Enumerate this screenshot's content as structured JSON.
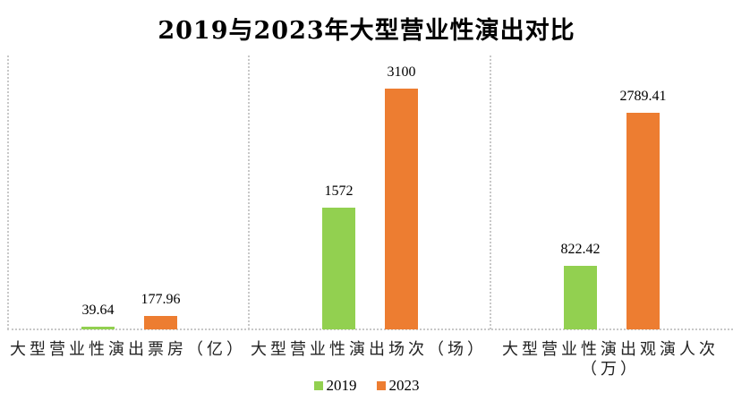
{
  "chart_data": {
    "type": "bar",
    "title": "2019与2023年大型营业性演出对比",
    "categories": [
      "大型营业性演出票房（亿）",
      "大型营业性演出场次（场）",
      "大型营业性演出观演人次（万）"
    ],
    "series": [
      {
        "name": "2019",
        "color": "#92d050",
        "values": [
          39.64,
          1572,
          822.42
        ],
        "labels": [
          "39.64",
          "1572",
          "822.42"
        ]
      },
      {
        "name": "2023",
        "color": "#ed7d31",
        "values": [
          177.96,
          3100,
          2789.41
        ],
        "labels": [
          "177.96",
          "3100",
          "2789.41"
        ]
      }
    ],
    "xlabel": "",
    "ylabel": "",
    "y_axis_visible": false,
    "grid": false,
    "legend_position": "bottom",
    "data_labels": true
  },
  "title": "2019与2023年大型营业性演出对比",
  "categories": {
    "c0": "大型营业性演出票房（亿）",
    "c1": "大型营业性演出场次（场）",
    "c2a": "大型营业性演出观演人次",
    "c2b": "（万）"
  },
  "labels": {
    "s0": [
      "39.64",
      "1572",
      "822.42"
    ],
    "s1": [
      "177.96",
      "3100",
      "2789.41"
    ]
  },
  "legend": [
    {
      "label": "2019",
      "color": "#92d050"
    },
    {
      "label": "2023",
      "color": "#ed7d31"
    }
  ]
}
